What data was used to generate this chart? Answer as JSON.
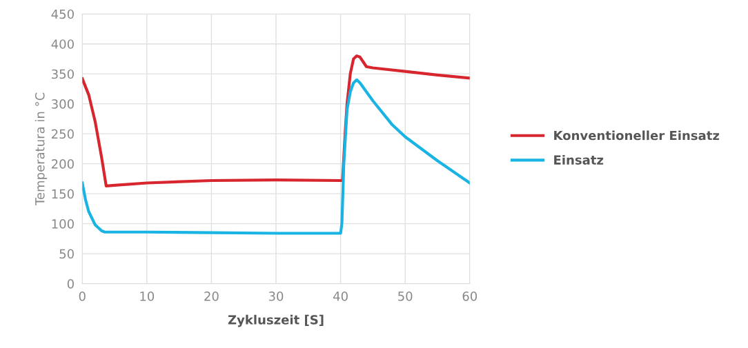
{
  "chart_data": {
    "type": "line",
    "xlabel": "Zykluszeit [S]",
    "ylabel": "Temperatura in °C",
    "xlim": [
      0,
      60
    ],
    "xticks": [
      0,
      10,
      20,
      30,
      40,
      50,
      60
    ],
    "ylim": [
      0,
      450
    ],
    "yticks": [
      0,
      50,
      100,
      150,
      200,
      250,
      300,
      350,
      400,
      450
    ],
    "grid": true,
    "legend": "right",
    "marker": "none",
    "line_style": "solid",
    "series": [
      {
        "name": "Konventioneller Einsatz",
        "color": "#d7262e",
        "x": [
          0,
          1,
          2,
          3,
          3.7,
          5,
          10,
          20,
          30,
          40,
          40.3,
          40.7,
          41,
          41.5,
          42,
          42.5,
          43,
          43.5,
          44,
          45,
          50,
          55,
          60
        ],
        "values": [
          342,
          315,
          270,
          210,
          163,
          164,
          168,
          172,
          173,
          172,
          172,
          250,
          300,
          350,
          375,
          380,
          378,
          370,
          362,
          360,
          354,
          348,
          343
        ]
      },
      {
        "name": "Einsatz",
        "color": "#19b4e3",
        "x": [
          0,
          0.5,
          1,
          2,
          3,
          3.5,
          10,
          20,
          30,
          40,
          40.2,
          40.5,
          41,
          41.5,
          42,
          42.5,
          43,
          44,
          45,
          48,
          50,
          55,
          60
        ],
        "values": [
          168,
          140,
          120,
          98,
          88,
          86,
          86,
          85,
          84,
          84,
          100,
          200,
          290,
          320,
          335,
          340,
          335,
          320,
          305,
          265,
          245,
          205,
          168
        ]
      }
    ]
  }
}
